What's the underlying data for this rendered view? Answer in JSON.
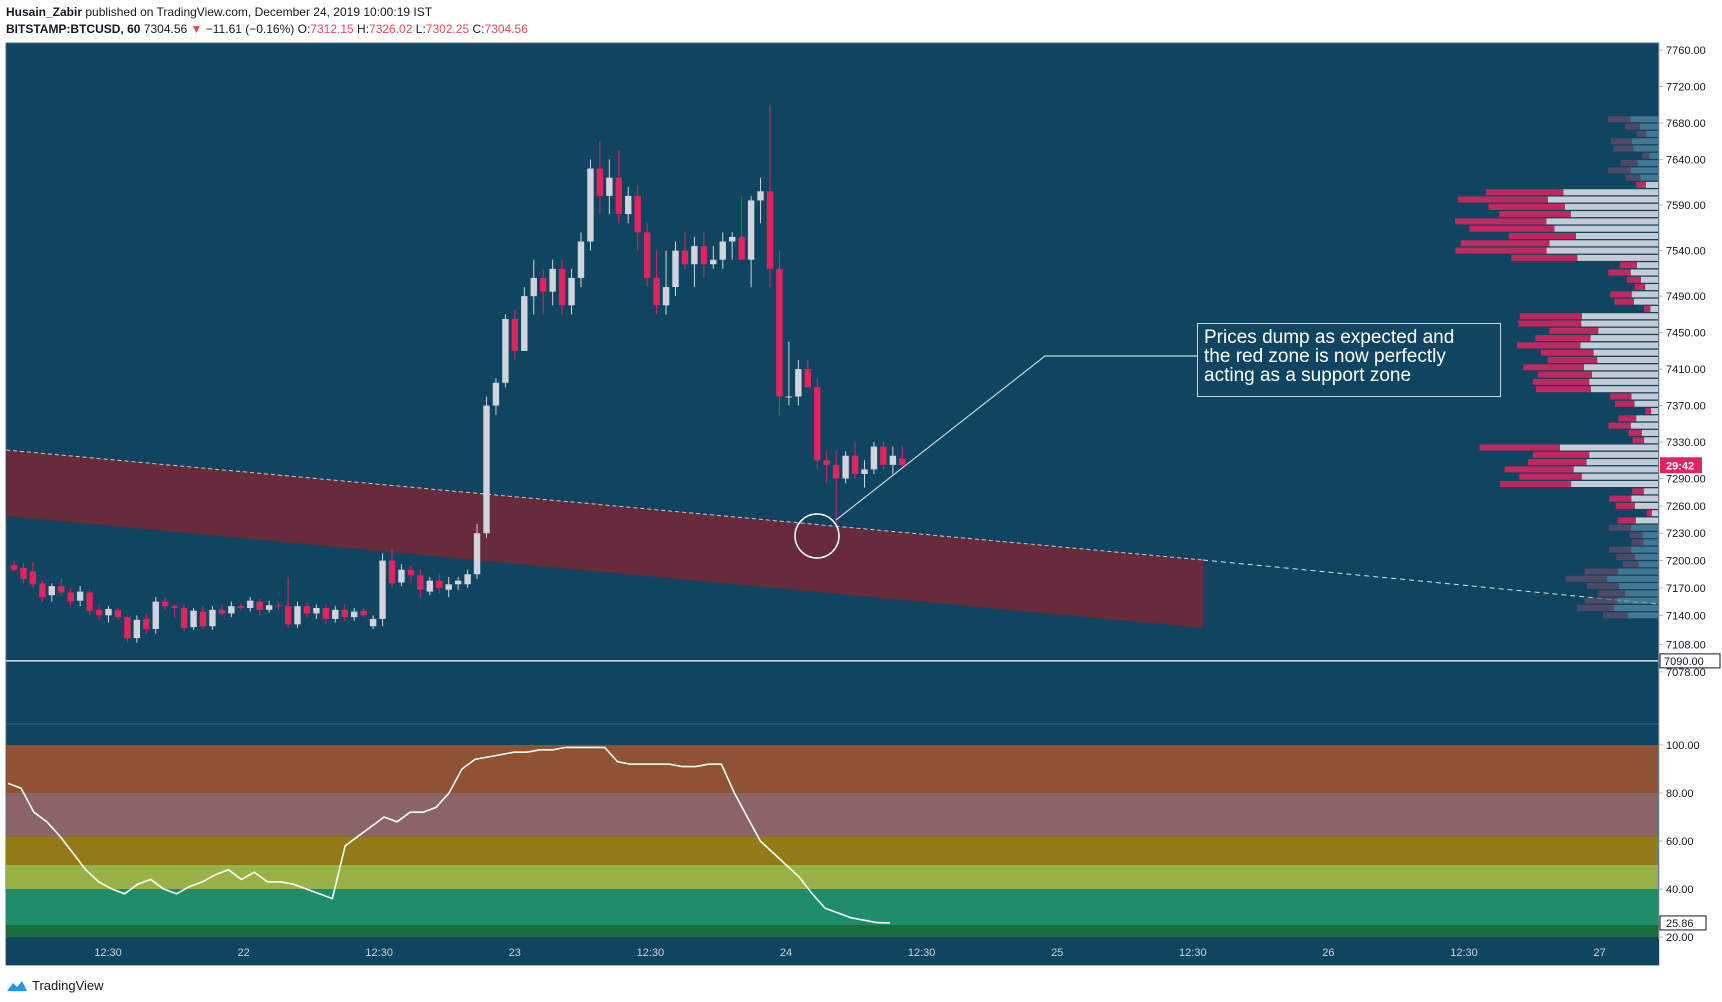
{
  "header": {
    "author": "Husain_Zabir",
    "published": "published on TradingView.com, December 24, 2019 10:00:19 IST",
    "symbol": "BITSTAMP:BTCUSD, 60",
    "last": "7304.56",
    "arrow": "▼",
    "change": "−11.61 (−0.16%)",
    "o_label": "O:",
    "o_value": "7312.15",
    "h_label": "H:",
    "h_value": "7326.02",
    "l_label": "L:",
    "l_value": "7302.25",
    "c_label": "C:",
    "c_value": "7304.56"
  },
  "annotation": {
    "lines": [
      "Prices dump as expected and",
      "the red zone is now perfectly",
      "acting as a support zone"
    ]
  },
  "footer": {
    "brand": "TradingView"
  },
  "colors": {
    "background": "#0f4560",
    "up_candle": "#d1d4dc",
    "down_candle": "#e0245e",
    "zone": "#6d2a3a",
    "price_badge": "#e0245e",
    "rsi_bands": [
      "#8f5232",
      "#8b6469",
      "#937a16",
      "#98b246",
      "#1e8e6a",
      "#186e3a"
    ]
  },
  "chart_data": [
    {
      "type": "candlestick",
      "symbol": "BITSTAMP:BTCUSD",
      "interval": "60",
      "x_ticks": [
        "12:30",
        "22",
        "12:30",
        "23",
        "12:30",
        "24",
        "12:30",
        "25",
        "12:30",
        "26",
        "12:30",
        "27"
      ],
      "y_ticks": [
        7760,
        7720,
        7680,
        7640,
        7590,
        7540,
        7490,
        7450,
        7410,
        7370,
        7330,
        7290,
        7260,
        7230,
        7200,
        7170,
        7140,
        7108,
        7078
      ],
      "ylim": [
        7065,
        7780
      ],
      "last_price_badge": "29:42",
      "horizontal_line": {
        "value": 7090,
        "label": "7090.00"
      },
      "candles": [
        {
          "o": 7195,
          "h": 7200,
          "l": 7188,
          "c": 7190
        },
        {
          "o": 7192,
          "h": 7197,
          "l": 7175,
          "c": 7180
        },
        {
          "o": 7188,
          "h": 7198,
          "l": 7170,
          "c": 7174
        },
        {
          "o": 7175,
          "h": 7178,
          "l": 7155,
          "c": 7160
        },
        {
          "o": 7162,
          "h": 7175,
          "l": 7155,
          "c": 7172
        },
        {
          "o": 7172,
          "h": 7180,
          "l": 7162,
          "c": 7165
        },
        {
          "o": 7165,
          "h": 7170,
          "l": 7150,
          "c": 7155
        },
        {
          "o": 7156,
          "h": 7172,
          "l": 7150,
          "c": 7166
        },
        {
          "o": 7165,
          "h": 7168,
          "l": 7140,
          "c": 7145
        },
        {
          "o": 7146,
          "h": 7152,
          "l": 7135,
          "c": 7140
        },
        {
          "o": 7140,
          "h": 7150,
          "l": 7132,
          "c": 7147
        },
        {
          "o": 7146,
          "h": 7148,
          "l": 7135,
          "c": 7138
        },
        {
          "o": 7138,
          "h": 7140,
          "l": 7110,
          "c": 7115
        },
        {
          "o": 7115,
          "h": 7140,
          "l": 7110,
          "c": 7135
        },
        {
          "o": 7136,
          "h": 7142,
          "l": 7120,
          "c": 7125
        },
        {
          "o": 7125,
          "h": 7160,
          "l": 7120,
          "c": 7155
        },
        {
          "o": 7155,
          "h": 7160,
          "l": 7145,
          "c": 7150
        },
        {
          "o": 7150,
          "h": 7152,
          "l": 7138,
          "c": 7148
        },
        {
          "o": 7148,
          "h": 7152,
          "l": 7122,
          "c": 7126
        },
        {
          "o": 7127,
          "h": 7148,
          "l": 7124,
          "c": 7145
        },
        {
          "o": 7144,
          "h": 7150,
          "l": 7125,
          "c": 7128
        },
        {
          "o": 7128,
          "h": 7150,
          "l": 7124,
          "c": 7146
        },
        {
          "o": 7146,
          "h": 7152,
          "l": 7140,
          "c": 7142
        },
        {
          "o": 7142,
          "h": 7155,
          "l": 7138,
          "c": 7150
        },
        {
          "o": 7150,
          "h": 7153,
          "l": 7145,
          "c": 7148
        },
        {
          "o": 7148,
          "h": 7160,
          "l": 7144,
          "c": 7156
        },
        {
          "o": 7155,
          "h": 7158,
          "l": 7140,
          "c": 7146
        },
        {
          "o": 7146,
          "h": 7156,
          "l": 7143,
          "c": 7151
        },
        {
          "o": 7151,
          "h": 7154,
          "l": 7146,
          "c": 7150
        },
        {
          "o": 7150,
          "h": 7182,
          "l": 7126,
          "c": 7130
        },
        {
          "o": 7130,
          "h": 7155,
          "l": 7126,
          "c": 7150
        },
        {
          "o": 7150,
          "h": 7154,
          "l": 7138,
          "c": 7142
        },
        {
          "o": 7142,
          "h": 7152,
          "l": 7136,
          "c": 7148
        },
        {
          "o": 7148,
          "h": 7152,
          "l": 7130,
          "c": 7136
        },
        {
          "o": 7136,
          "h": 7150,
          "l": 7132,
          "c": 7146
        },
        {
          "o": 7146,
          "h": 7152,
          "l": 7134,
          "c": 7138
        },
        {
          "o": 7138,
          "h": 7148,
          "l": 7134,
          "c": 7144
        },
        {
          "o": 7145,
          "h": 7148,
          "l": 7138,
          "c": 7140
        },
        {
          "o": 7128,
          "h": 7140,
          "l": 7125,
          "c": 7136
        },
        {
          "o": 7136,
          "h": 7208,
          "l": 7128,
          "c": 7200
        },
        {
          "o": 7200,
          "h": 7212,
          "l": 7170,
          "c": 7175
        },
        {
          "o": 7176,
          "h": 7196,
          "l": 7172,
          "c": 7190
        },
        {
          "o": 7190,
          "h": 7194,
          "l": 7178,
          "c": 7184
        },
        {
          "o": 7184,
          "h": 7190,
          "l": 7160,
          "c": 7168
        },
        {
          "o": 7166,
          "h": 7182,
          "l": 7162,
          "c": 7178
        },
        {
          "o": 7178,
          "h": 7186,
          "l": 7164,
          "c": 7170
        },
        {
          "o": 7168,
          "h": 7182,
          "l": 7160,
          "c": 7174
        },
        {
          "o": 7174,
          "h": 7182,
          "l": 7168,
          "c": 7178
        },
        {
          "o": 7174,
          "h": 7190,
          "l": 7170,
          "c": 7185
        },
        {
          "o": 7185,
          "h": 7240,
          "l": 7180,
          "c": 7230
        },
        {
          "o": 7230,
          "h": 7380,
          "l": 7225,
          "c": 7370
        },
        {
          "o": 7370,
          "h": 7400,
          "l": 7360,
          "c": 7395
        },
        {
          "o": 7395,
          "h": 7470,
          "l": 7390,
          "c": 7465
        },
        {
          "o": 7465,
          "h": 7475,
          "l": 7420,
          "c": 7430
        },
        {
          "o": 7430,
          "h": 7500,
          "l": 7430,
          "c": 7490
        },
        {
          "o": 7490,
          "h": 7530,
          "l": 7470,
          "c": 7510
        },
        {
          "o": 7510,
          "h": 7520,
          "l": 7470,
          "c": 7495
        },
        {
          "o": 7495,
          "h": 7530,
          "l": 7480,
          "c": 7520
        },
        {
          "o": 7520,
          "h": 7530,
          "l": 7470,
          "c": 7480
        },
        {
          "o": 7480,
          "h": 7520,
          "l": 7470,
          "c": 7510
        },
        {
          "o": 7510,
          "h": 7560,
          "l": 7500,
          "c": 7550
        },
        {
          "o": 7550,
          "h": 7640,
          "l": 7540,
          "c": 7630
        },
        {
          "o": 7630,
          "h": 7660,
          "l": 7580,
          "c": 7600
        },
        {
          "o": 7600,
          "h": 7640,
          "l": 7580,
          "c": 7620
        },
        {
          "o": 7620,
          "h": 7650,
          "l": 7570,
          "c": 7580
        },
        {
          "o": 7580,
          "h": 7610,
          "l": 7570,
          "c": 7600
        },
        {
          "o": 7600,
          "h": 7612,
          "l": 7540,
          "c": 7560
        },
        {
          "o": 7560,
          "h": 7570,
          "l": 7500,
          "c": 7510
        },
        {
          "o": 7510,
          "h": 7540,
          "l": 7470,
          "c": 7480
        },
        {
          "o": 7480,
          "h": 7540,
          "l": 7470,
          "c": 7500
        },
        {
          "o": 7500,
          "h": 7550,
          "l": 7490,
          "c": 7540
        },
        {
          "o": 7540,
          "h": 7560,
          "l": 7520,
          "c": 7525
        },
        {
          "o": 7525,
          "h": 7555,
          "l": 7500,
          "c": 7545
        },
        {
          "o": 7545,
          "h": 7560,
          "l": 7510,
          "c": 7525
        },
        {
          "o": 7525,
          "h": 7545,
          "l": 7520,
          "c": 7530
        },
        {
          "o": 7530,
          "h": 7560,
          "l": 7520,
          "c": 7550
        },
        {
          "o": 7550,
          "h": 7560,
          "l": 7530,
          "c": 7555
        },
        {
          "o": 7555,
          "h": 7600,
          "l": 7530,
          "c": 7530
        },
        {
          "o": 7530,
          "h": 7600,
          "l": 7500,
          "c": 7595
        },
        {
          "o": 7595,
          "h": 7620,
          "l": 7570,
          "c": 7605
        },
        {
          "o": 7605,
          "h": 7700,
          "l": 7500,
          "c": 7520
        },
        {
          "o": 7520,
          "h": 7540,
          "l": 7360,
          "c": 7380
        },
        {
          "o": 7380,
          "h": 7440,
          "l": 7370,
          "c": 7380
        },
        {
          "o": 7380,
          "h": 7420,
          "l": 7370,
          "c": 7410
        },
        {
          "o": 7410,
          "h": 7420,
          "l": 7390,
          "c": 7390
        },
        {
          "o": 7390,
          "h": 7400,
          "l": 7300,
          "c": 7310
        },
        {
          "o": 7310,
          "h": 7320,
          "l": 7285,
          "c": 7305
        },
        {
          "o": 7305,
          "h": 7320,
          "l": 7240,
          "c": 7290
        },
        {
          "o": 7290,
          "h": 7320,
          "l": 7285,
          "c": 7315
        },
        {
          "o": 7315,
          "h": 7330,
          "l": 7290,
          "c": 7295
        },
        {
          "o": 7295,
          "h": 7310,
          "l": 7280,
          "c": 7300
        },
        {
          "o": 7300,
          "h": 7330,
          "l": 7295,
          "c": 7325
        },
        {
          "o": 7325,
          "h": 7330,
          "l": 7300,
          "c": 7305
        },
        {
          "o": 7305,
          "h": 7325,
          "l": 7295,
          "c": 7315
        },
        {
          "o": 7312,
          "h": 7326,
          "l": 7302,
          "c": 7305
        }
      ],
      "zone": "Red channel zone with a dashed upper trendline extended to the right"
    },
    {
      "type": "line",
      "indicator": "oscillator",
      "y_ticks": [
        100,
        80,
        60,
        40,
        20
      ],
      "ylim": [
        20,
        100
      ],
      "last_value_label": "25.86",
      "bands": [
        [
          80,
          100
        ],
        [
          62,
          80
        ],
        [
          50,
          62
        ],
        [
          40,
          50
        ],
        [
          25,
          40
        ],
        [
          20,
          25
        ]
      ],
      "values": [
        84,
        82,
        72,
        68,
        62,
        55,
        48,
        43,
        40,
        38,
        42,
        44,
        40,
        38,
        41,
        43,
        46,
        48,
        44,
        47,
        43,
        43,
        42,
        40,
        38,
        36,
        58,
        62,
        66,
        70,
        68,
        72,
        72,
        74,
        80,
        90,
        94,
        95,
        96,
        97,
        97,
        98,
        98,
        99,
        99,
        99,
        99,
        93,
        92,
        92,
        92,
        92,
        91,
        91,
        92,
        92,
        80,
        70,
        60,
        55,
        50,
        45,
        38,
        32,
        30,
        28,
        27,
        26,
        25.86
      ],
      "x_ticks": [
        "12:30",
        "22",
        "12:30",
        "23",
        "12:30",
        "24",
        "12:30",
        "25",
        "12:30",
        "26",
        "12:30",
        "27"
      ]
    }
  ]
}
